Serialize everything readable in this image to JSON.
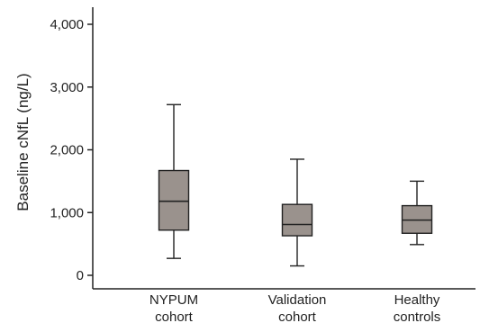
{
  "chart_data": {
    "type": "box",
    "ylabel": "Baseline cNfL (ng/L)",
    "xlabel": "",
    "ylim": [
      0,
      4000
    ],
    "yticks": [
      0,
      1000,
      2000,
      3000,
      4000
    ],
    "ytick_labels": [
      "0",
      "1,000",
      "2,000",
      "3,000",
      "4,000"
    ],
    "grid": false,
    "box_color": "#9a928d",
    "line_color": "#222222",
    "categories": [
      {
        "lines": [
          "NYPUM",
          "cohort"
        ],
        "min": 270,
        "q1": 720,
        "median": 1180,
        "q3": 1670,
        "max": 2720
      },
      {
        "lines": [
          "Validation",
          "cohort"
        ],
        "min": 150,
        "q1": 630,
        "median": 810,
        "q3": 1130,
        "max": 1850
      },
      {
        "lines": [
          "Healthy",
          "controls"
        ],
        "min": 490,
        "q1": 670,
        "median": 880,
        "q3": 1110,
        "max": 1500
      }
    ]
  }
}
